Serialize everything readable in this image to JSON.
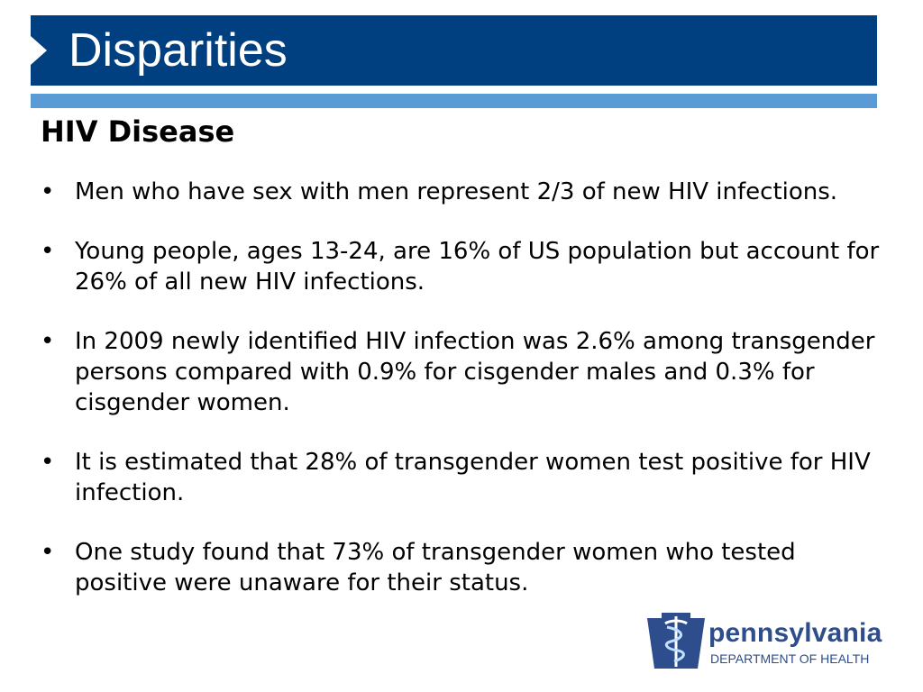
{
  "slide": {
    "title": "Disparities",
    "subtitle": "HIV Disease",
    "bullets": [
      "Men who have sex with men represent 2/3 of new HIV infections.",
      "Young people, ages 13-24, are 16% of US population but account for 26% of all new HIV infections.",
      "In 2009 newly identified HIV infection was 2.6% among transgender persons compared with 0.9% for cisgender males and 0.3% for cisgender women.",
      "It is estimated that 28% of transgender women test positive for HIV infection.",
      "One study found that 73% of transgender women who tested positive were unaware for their status."
    ],
    "bullet_glyph": "•"
  },
  "logo": {
    "name": "pennsylvania",
    "department": "DEPARTMENT OF HEALTH",
    "icon": "keystone-caduceus-icon"
  },
  "colors": {
    "title_bar": "#003f80",
    "accent_bar": "#5b9bd5",
    "logo_blue": "#2e4d8c",
    "logo_light": "#3a7cc4"
  }
}
